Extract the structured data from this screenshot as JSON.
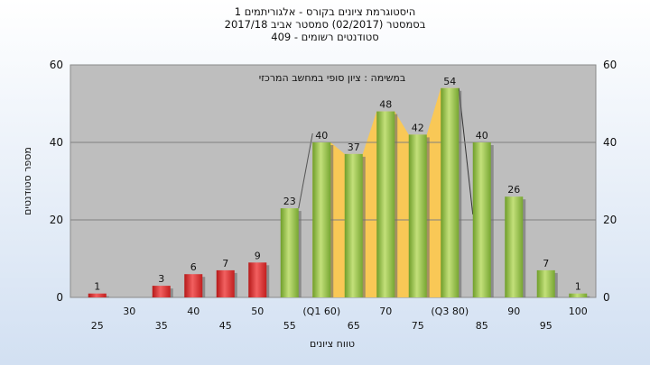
{
  "chart_data": {
    "type": "bar",
    "title_lines": [
      "היסטוגרמת ציונים בקורס - אלגוריתמים 1",
      "בסמסטר  (02/2017)  סמסטר אביב 2017/18",
      "סטודנטים רשומים - 409"
    ],
    "xlabel": "טווח ציונים",
    "ylabel": "מספר סטודנטים",
    "ylim": [
      0,
      60
    ],
    "yticks": [
      0,
      20,
      40,
      60
    ],
    "grid": true,
    "annotation": "במשימה : ציון סופי במחשב המרכזי",
    "categories": [
      "25",
      "30",
      "35",
      "40",
      "45",
      "50",
      "55",
      "(Q1 60)",
      "65",
      "70",
      "75",
      "(Q3 80)",
      "85",
      "90",
      "95",
      "100"
    ],
    "values": [
      1,
      0,
      3,
      6,
      7,
      9,
      23,
      40,
      37,
      48,
      42,
      54,
      40,
      26,
      7,
      1
    ],
    "bar_colors": [
      "red",
      "red",
      "red",
      "red",
      "red",
      "red",
      "green",
      "green",
      "green",
      "green",
      "green",
      "green",
      "green",
      "green",
      "green",
      "green"
    ],
    "interquartile_band": [
      "(Q1 60)",
      "(Q3 80)"
    ],
    "colors": {
      "red": "#e02a2a",
      "green": "#8cc63f",
      "band": "#ffc94a",
      "plot_bg": "#bebebe",
      "grid": "#808080"
    }
  }
}
